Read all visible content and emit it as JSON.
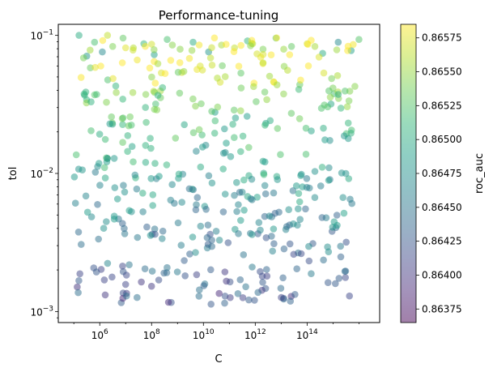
{
  "chart_data": {
    "type": "scatter",
    "title": "Performance-tuning",
    "xlabel": "C",
    "ylabel": "tol",
    "xscale": "log",
    "yscale": "log",
    "xlim_log10": [
      4.4,
      16.8
    ],
    "ylim_log10": [
      -3.08,
      -0.92
    ],
    "x_tick_exponents": [
      6,
      8,
      10,
      12,
      14
    ],
    "y_tick_exponents": [
      -3,
      -2,
      -1
    ],
    "x_tick_labels": [
      "10^6",
      "10^8",
      "10^10",
      "10^12",
      "10^14"
    ],
    "y_tick_labels": [
      "10^-3",
      "10^-2",
      "10^-1"
    ],
    "colorbar": {
      "label": "roc_auc",
      "min": 0.86365,
      "max": 0.86585,
      "ticks": [
        "0.86375",
        "0.86400",
        "0.86425",
        "0.86450",
        "0.86475",
        "0.86500",
        "0.86525",
        "0.86550",
        "0.86575"
      ],
      "colormap": [
        "#440154",
        "#482878",
        "#3e4989",
        "#31688e",
        "#26828e",
        "#1f9e89",
        "#35b779",
        "#6ece58",
        "#b5de2b",
        "#fde725"
      ]
    },
    "marker_alpha": 0.5,
    "point_count": 500,
    "series": [
      {
        "note_xy_format": "points are [log10(C), log10(tol), roc_auc]",
        "points": [
          [
            5.2,
            -1.0,
            0.865
          ],
          [
            5.5,
            -1.15,
            0.8648
          ],
          [
            5.8,
            -1.05,
            0.8652
          ],
          [
            6.1,
            -1.12,
            0.8647
          ],
          [
            6.5,
            -1.08,
            0.8654
          ],
          [
            6.9,
            -1.02,
            0.8653
          ],
          [
            7.3,
            -1.09,
            0.8656
          ],
          [
            7.7,
            -1.06,
            0.8651
          ],
          [
            8.1,
            -1.14,
            0.8649
          ],
          [
            8.6,
            -1.03,
            0.8652
          ],
          [
            9.1,
            -1.1,
            0.86545
          ],
          [
            9.6,
            -1.05,
            0.865
          ],
          [
            10.2,
            -1.12,
            0.8648
          ],
          [
            10.7,
            -1.07,
            0.86555
          ],
          [
            11.2,
            -1.09,
            0.86565
          ],
          [
            11.7,
            -1.04,
            0.8651
          ],
          [
            12.3,
            -1.1,
            0.8654
          ],
          [
            12.8,
            -1.02,
            0.8652
          ],
          [
            13.4,
            -1.08,
            0.8653
          ],
          [
            14.0,
            -1.06,
            0.8657
          ],
          [
            14.6,
            -1.13,
            0.865
          ],
          [
            15.2,
            -1.05,
            0.8647
          ],
          [
            15.7,
            -1.11,
            0.8649
          ],
          [
            16.0,
            -1.03,
            0.86525
          ],
          [
            7.0,
            -1.09,
            0.86575
          ],
          [
            6.3,
            -1.0,
            0.86565
          ],
          [
            11.9,
            -1.06,
            0.8656
          ],
          [
            13.1,
            -1.1,
            0.8655
          ],
          [
            8.8,
            -1.07,
            0.86545
          ],
          [
            14.3,
            -1.08,
            0.86555
          ]
        ]
      }
    ]
  }
}
